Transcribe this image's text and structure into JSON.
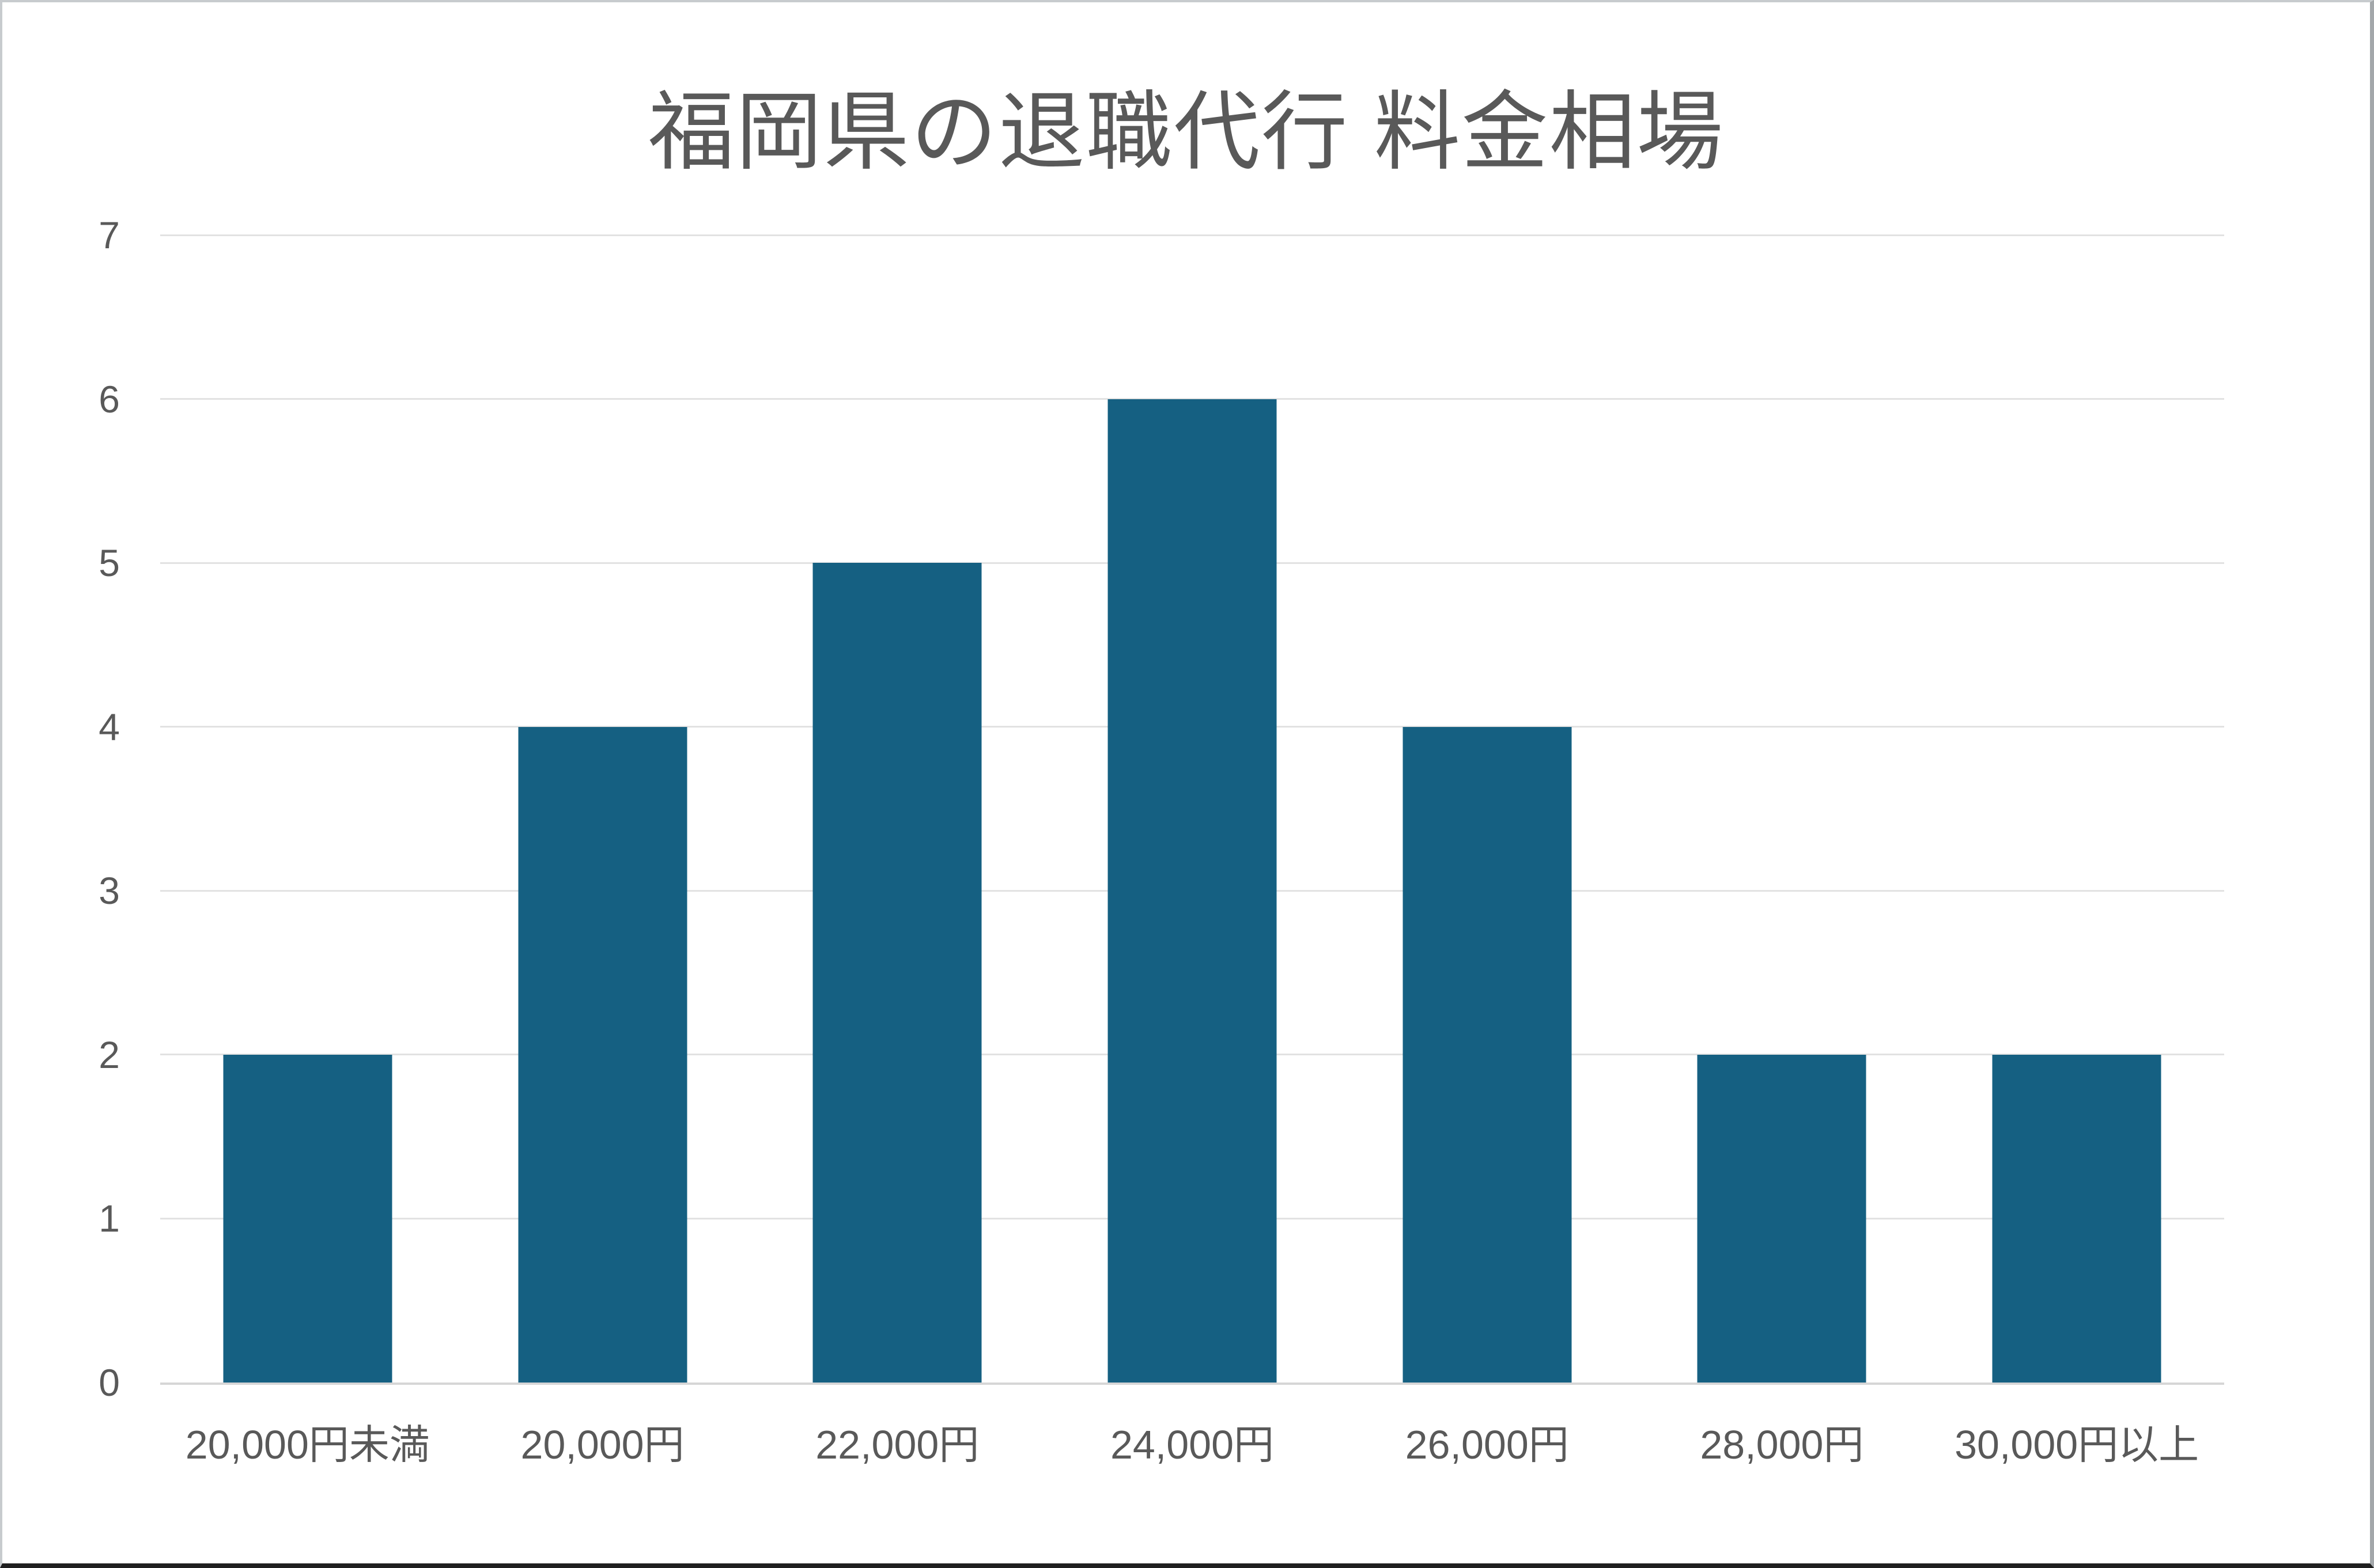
{
  "chart_data": {
    "type": "bar",
    "title": "福岡県の退職代行 料金相場",
    "categories": [
      "20,000円未満",
      "20,000円",
      "22,000円",
      "24,000円",
      "26,000円",
      "28,000円",
      "30,000円以上"
    ],
    "values": [
      2,
      4,
      5,
      6,
      4,
      2,
      2
    ],
    "xlabel": "",
    "ylabel": "",
    "ylim": [
      0,
      7
    ],
    "yticks": [
      0,
      1,
      2,
      3,
      4,
      5,
      6,
      7
    ],
    "grid": true,
    "legend": false,
    "colors": {
      "bar": "#156082",
      "gridline": "#e2e2e2",
      "axis_line": "#d6d6d6",
      "title_text": "#595959",
      "tick_text": "#595959"
    }
  }
}
